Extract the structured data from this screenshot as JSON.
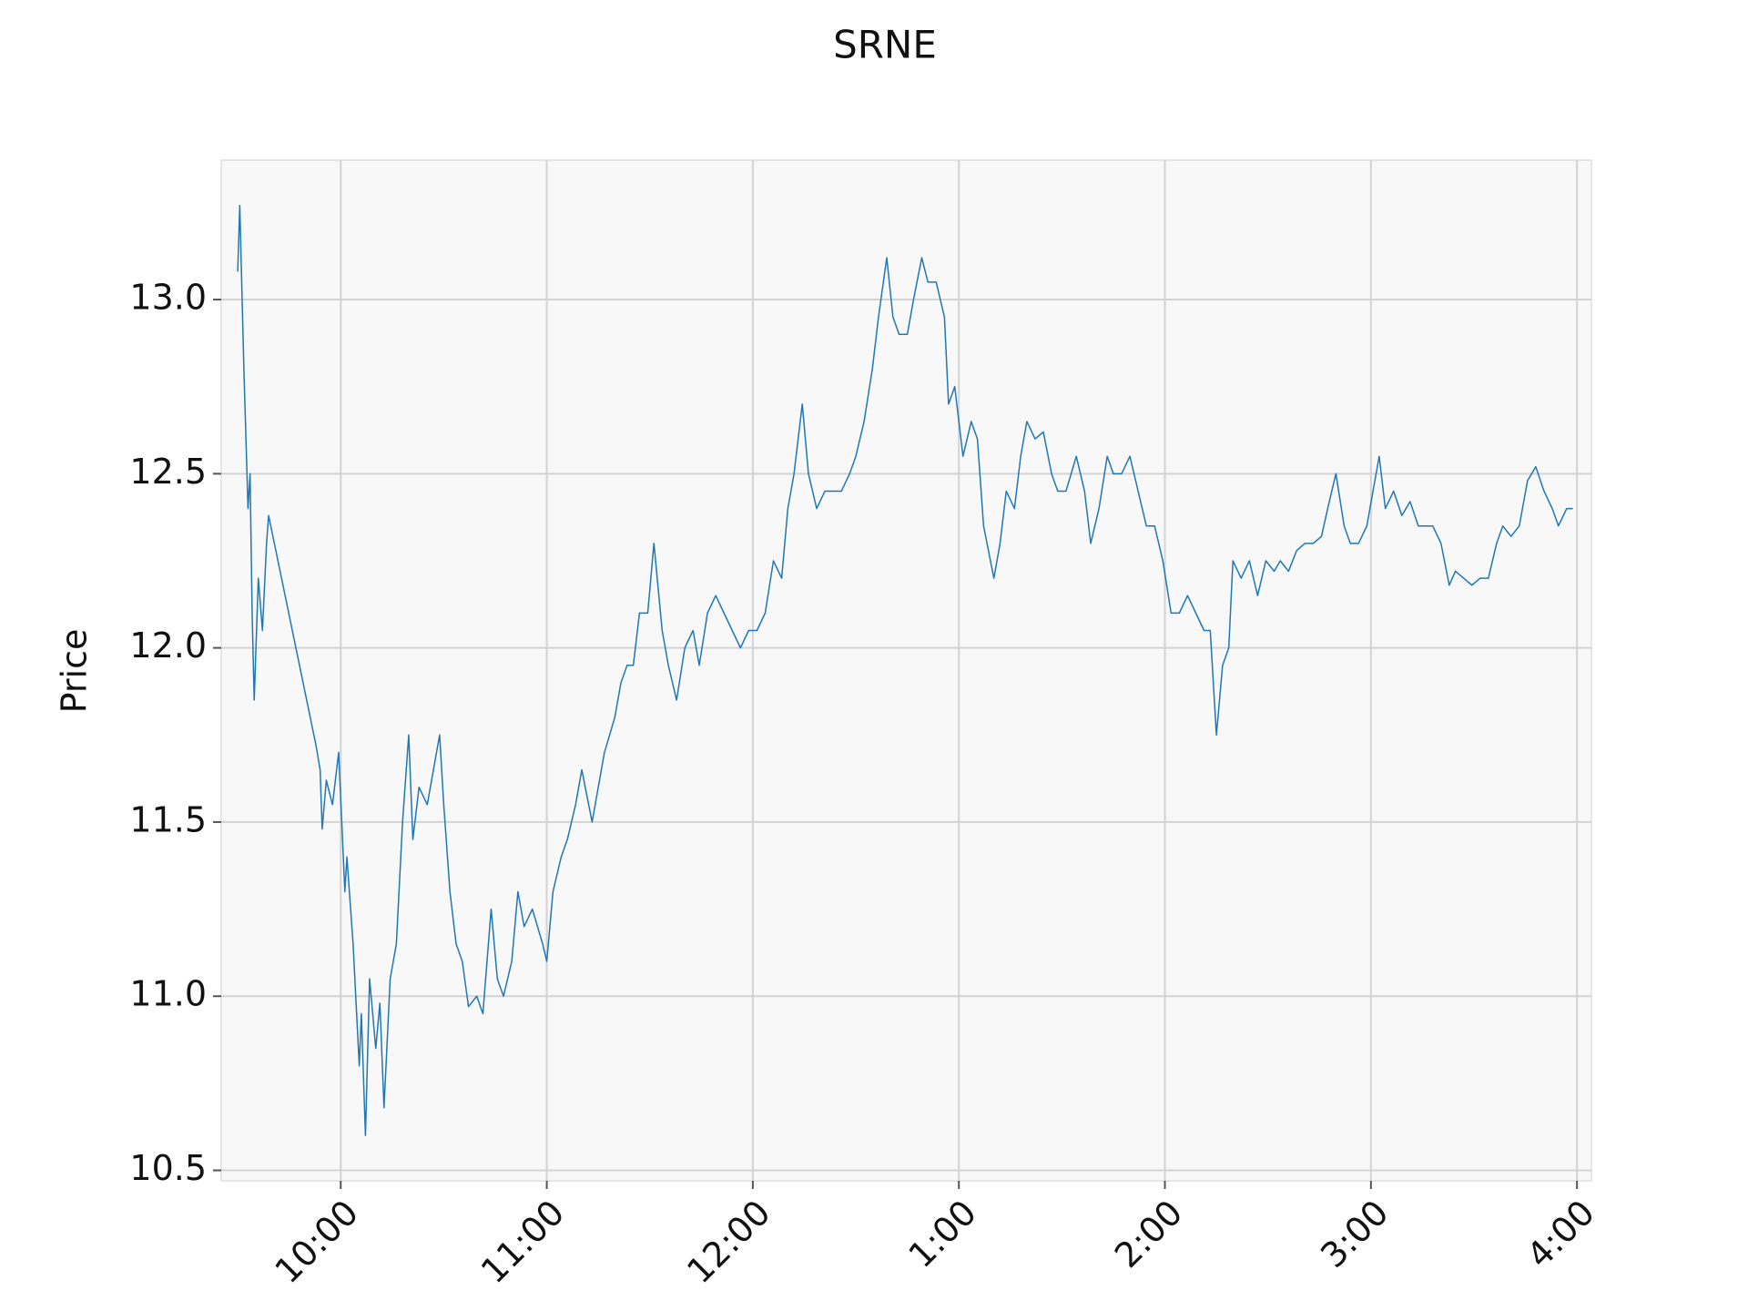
{
  "chart_data": {
    "type": "line",
    "title": "SRNE",
    "y_label": "Price",
    "xlim": [
      9.42,
      16.07
    ],
    "ylim": [
      10.47,
      13.4
    ],
    "xticks": [
      {
        "value": 10,
        "label": "10:00"
      },
      {
        "value": 11,
        "label": "11:00"
      },
      {
        "value": 12,
        "label": "12:00"
      },
      {
        "value": 13,
        "label": "1:00"
      },
      {
        "value": 14,
        "label": "2:00"
      },
      {
        "value": 15,
        "label": "3:00"
      },
      {
        "value": 16,
        "label": "4:00"
      }
    ],
    "yticks": [
      {
        "value": 10.5,
        "label": "10.5"
      },
      {
        "value": 11,
        "label": "11.0"
      },
      {
        "value": 11.5,
        "label": "11.5"
      },
      {
        "value": 12,
        "label": "12.0"
      },
      {
        "value": 12.5,
        "label": "12.5"
      },
      {
        "value": 13,
        "label": "13.0"
      }
    ],
    "grid": true,
    "x": [
      9.5,
      9.51,
      9.53,
      9.55,
      9.56,
      9.57,
      9.58,
      9.6,
      9.62,
      9.64,
      9.65,
      9.88,
      9.9,
      9.91,
      9.93,
      9.96,
      9.99,
      10.02,
      10.03,
      10.06,
      10.09,
      10.1,
      10.12,
      10.14,
      10.17,
      10.19,
      10.21,
      10.24,
      10.27,
      10.3,
      10.33,
      10.35,
      10.38,
      10.42,
      10.45,
      10.48,
      10.5,
      10.53,
      10.56,
      10.59,
      10.62,
      10.66,
      10.69,
      10.73,
      10.76,
      10.79,
      10.83,
      10.86,
      10.89,
      10.93,
      10.98,
      11.0,
      11.03,
      11.07,
      11.1,
      11.14,
      11.17,
      11.22,
      11.25,
      11.28,
      11.33,
      11.36,
      11.39,
      11.42,
      11.45,
      11.49,
      11.52,
      11.56,
      11.59,
      11.63,
      11.67,
      11.71,
      11.74,
      11.78,
      11.82,
      11.86,
      11.9,
      11.94,
      11.98,
      12.02,
      12.06,
      12.1,
      12.14,
      12.17,
      12.2,
      12.24,
      12.27,
      12.31,
      12.35,
      12.38,
      12.43,
      12.47,
      12.5,
      12.54,
      12.58,
      12.61,
      12.65,
      12.68,
      12.71,
      12.75,
      12.78,
      12.82,
      12.85,
      12.89,
      12.93,
      12.95,
      12.98,
      13.02,
      13.06,
      13.09,
      13.12,
      13.17,
      13.2,
      13.23,
      13.27,
      13.3,
      13.33,
      13.37,
      13.41,
      13.45,
      13.48,
      13.52,
      13.57,
      13.61,
      13.64,
      13.68,
      13.72,
      13.75,
      13.79,
      13.83,
      13.87,
      13.91,
      13.95,
      13.99,
      14.03,
      14.07,
      14.11,
      14.15,
      14.19,
      14.22,
      14.25,
      14.28,
      14.31,
      14.33,
      14.37,
      14.41,
      14.45,
      14.49,
      14.53,
      14.56,
      14.6,
      14.64,
      14.68,
      14.72,
      14.76,
      14.79,
      14.83,
      14.87,
      14.9,
      14.94,
      14.98,
      15.01,
      15.04,
      15.07,
      15.11,
      15.15,
      15.19,
      15.23,
      15.27,
      15.3,
      15.34,
      15.38,
      15.41,
      15.45,
      15.49,
      15.53,
      15.57,
      15.61,
      15.64,
      15.68,
      15.72,
      15.76,
      15.8,
      15.84,
      15.88,
      15.91,
      15.95,
      15.98
    ],
    "series": [
      {
        "name": "SRNE",
        "color": "#1f77b4",
        "values": [
          13.08,
          13.27,
          12.8,
          12.4,
          12.5,
          12.1,
          11.85,
          12.2,
          12.05,
          12.3,
          12.38,
          11.72,
          11.65,
          11.48,
          11.62,
          11.55,
          11.7,
          11.3,
          11.4,
          11.15,
          10.8,
          10.95,
          10.6,
          11.05,
          10.85,
          10.98,
          10.68,
          11.05,
          11.15,
          11.5,
          11.75,
          11.45,
          11.6,
          11.55,
          11.65,
          11.75,
          11.55,
          11.3,
          11.15,
          11.1,
          10.97,
          11.0,
          10.95,
          11.25,
          11.05,
          11.0,
          11.1,
          11.3,
          11.2,
          11.25,
          11.15,
          11.1,
          11.3,
          11.4,
          11.45,
          11.55,
          11.65,
          11.5,
          11.6,
          11.7,
          11.8,
          11.9,
          11.95,
          11.95,
          12.1,
          12.1,
          12.3,
          12.05,
          11.95,
          11.85,
          12.0,
          12.05,
          11.95,
          12.1,
          12.15,
          12.1,
          12.05,
          12.0,
          12.05,
          12.05,
          12.1,
          12.25,
          12.2,
          12.4,
          12.5,
          12.7,
          12.5,
          12.4,
          12.45,
          12.45,
          12.45,
          12.5,
          12.55,
          12.65,
          12.8,
          12.95,
          13.12,
          12.95,
          12.9,
          12.9,
          13.0,
          13.12,
          13.05,
          13.05,
          12.95,
          12.7,
          12.75,
          12.55,
          12.65,
          12.6,
          12.35,
          12.2,
          12.3,
          12.45,
          12.4,
          12.55,
          12.65,
          12.6,
          12.62,
          12.5,
          12.45,
          12.45,
          12.55,
          12.45,
          12.3,
          12.4,
          12.55,
          12.5,
          12.5,
          12.55,
          12.45,
          12.35,
          12.35,
          12.25,
          12.1,
          12.1,
          12.15,
          12.1,
          12.05,
          12.05,
          11.75,
          11.95,
          12.0,
          12.25,
          12.2,
          12.25,
          12.15,
          12.25,
          12.22,
          12.25,
          12.22,
          12.28,
          12.3,
          12.3,
          12.32,
          12.4,
          12.5,
          12.35,
          12.3,
          12.3,
          12.35,
          12.45,
          12.55,
          12.4,
          12.45,
          12.38,
          12.42,
          12.35,
          12.35,
          12.35,
          12.3,
          12.18,
          12.22,
          12.2,
          12.18,
          12.2,
          12.2,
          12.3,
          12.35,
          12.32,
          12.35,
          12.48,
          12.52,
          12.45,
          12.4,
          12.35,
          12.4,
          12.4
        ]
      }
    ]
  }
}
